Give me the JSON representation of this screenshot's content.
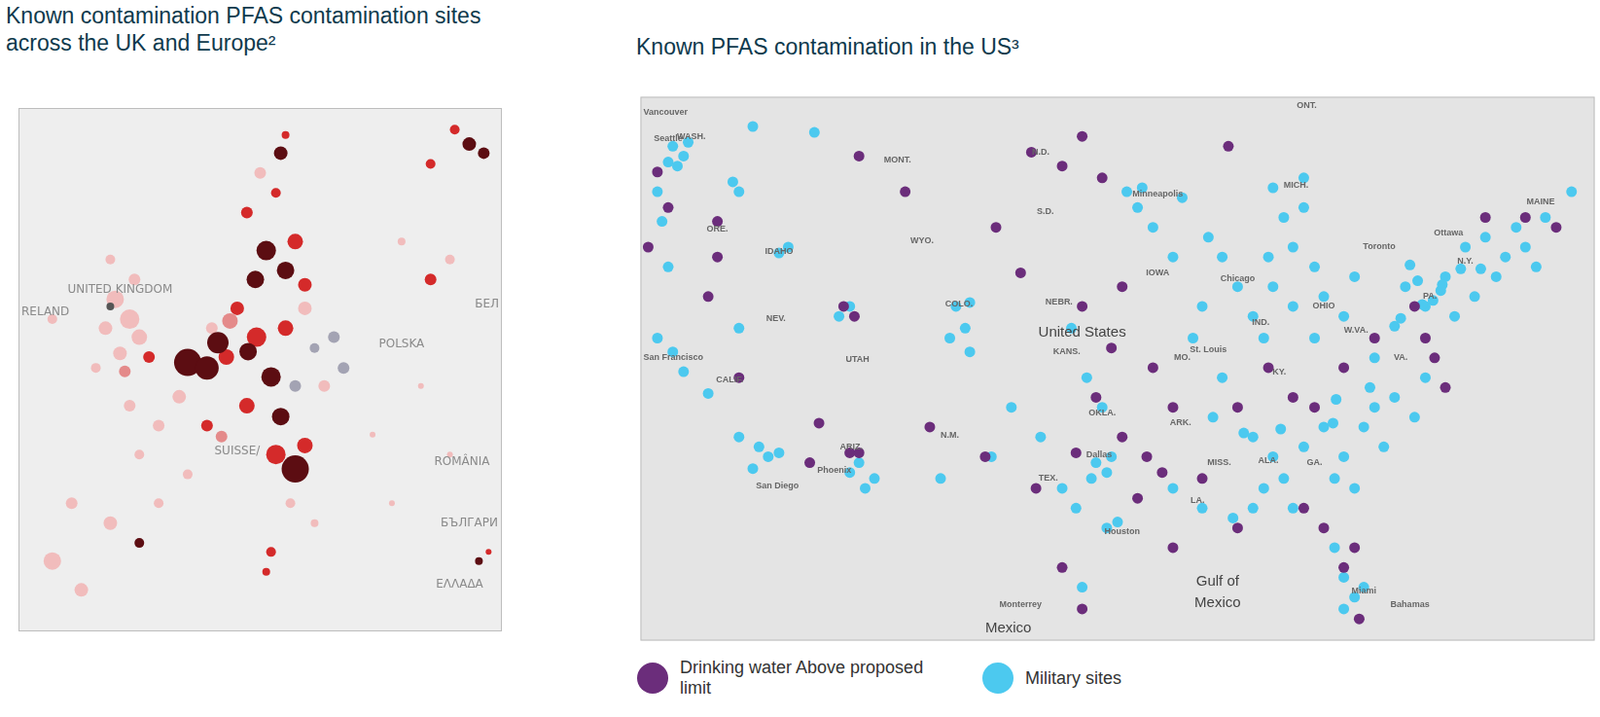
{
  "chart_data": [
    {
      "type": "bubble",
      "title": "Known contamination PFAS contamination sites across the UK and Europe²",
      "x": [
        -4.0,
        -2.8,
        -2.0,
        -3.6,
        -1.2,
        -4.8,
        -2.4,
        -4.4,
        -5.6,
        -3.2,
        -4.4,
        -9.2,
        2.0,
        3.6,
        5.2,
        8.5,
        10.1,
        10.9,
        7.6,
        11.7,
        6.9,
        9.3,
        8.0,
        9.7,
        10.1,
        25.3,
        26.5,
        24.1,
        22.1,
        22.1,
        23.7,
        19.7,
        7.7,
        10.1,
        11.7,
        12.5,
        8.9,
        10.9,
        6.9,
        9.7,
        13.3,
        6.1,
        4.0,
        -0.4,
        -2.8,
        2.0,
        -2.0,
        3.6,
        1.3,
        10.9,
        9.3,
        11.7,
        10.5,
        12.5,
        8.9,
        8.5,
        -9.2,
        -6.8,
        -4.4,
        -2.0,
        -7.6,
        -0.4,
        21.3,
        17.3,
        23.7,
        26.1,
        26.9,
        18.9,
        14.1,
        14.9,
        4.5,
        5.5,
        7.0,
        4.8
      ],
      "y": [
        53.4,
        52.3,
        51.3,
        50.4,
        50.2,
        51.8,
        54.5,
        55.6,
        49.6,
        49.4,
        53.0,
        52.3,
        49.9,
        49.6,
        50.2,
        56.1,
        55.0,
        56.6,
        54.5,
        54.2,
        58.2,
        59.3,
        60.4,
        61.5,
        62.5,
        62.0,
        61.5,
        62.8,
        60.9,
        54.5,
        55.6,
        56.6,
        51.3,
        51.8,
        52.9,
        50.7,
        49.1,
        48.6,
        47.5,
        46.9,
        48.6,
        52.9,
        51.8,
        46.4,
        47.5,
        43.7,
        44.8,
        46.4,
        48.0,
        44.0,
        44.8,
        45.3,
        42.1,
        41.0,
        39.4,
        38.3,
        38.9,
        37.3,
        41.0,
        39.9,
        42.1,
        42.1,
        48.6,
        45.9,
        44.8,
        38.9,
        39.4,
        42.1,
        51.3,
        49.6,
        51.0,
        52.2,
        50.5,
        45.8
      ],
      "sizes": [
        9,
        10,
        8,
        7,
        6,
        7,
        6,
        5,
        5,
        6,
        4,
        5,
        14,
        12,
        8,
        10,
        9,
        8,
        9,
        7,
        6,
        5,
        6,
        7,
        4,
        7,
        6,
        5,
        5,
        6,
        5,
        4,
        10,
        8,
        7,
        5,
        10,
        6,
        8,
        9,
        6,
        7,
        6,
        6,
        6,
        5,
        5,
        6,
        7,
        14,
        10,
        8,
        5,
        4,
        5,
        4,
        9,
        7,
        7,
        5,
        6,
        5,
        3,
        3,
        3,
        4,
        3,
        3,
        6,
        6,
        11,
        8,
        9,
        6
      ],
      "colors": [
        "#f1bcbc",
        "#f1bcbc",
        "#f1bcbc",
        "#f1bcbc",
        "#d42a2a",
        "#f1bcbc",
        "#f1bcbc",
        "#f1bcbc",
        "#f1bcbc",
        "#e48a8a",
        "#555555",
        "#f1bcbc",
        "#5c0d12",
        "#5c0d12",
        "#d42a2a",
        "#5c0d12",
        "#5c0d12",
        "#d42a2a",
        "#5c0d12",
        "#d42a2a",
        "#d42a2a",
        "#d42a2a",
        "#f1bcbc",
        "#5c0d12",
        "#d42a2a",
        "#5c0d12",
        "#5c0d12",
        "#d42a2a",
        "#d42a2a",
        "#d42a2a",
        "#f1bcbc",
        "#f1bcbc",
        "#d42a2a",
        "#d42a2a",
        "#f1bcbc",
        "#a3a3b3",
        "#5c0d12",
        "#a3a3b3",
        "#d42a2a",
        "#5c0d12",
        "#f1bcbc",
        "#d42a2a",
        "#f1bcbc",
        "#f1bcbc",
        "#f1bcbc",
        "#f1bcbc",
        "#f1bcbc",
        "#d42a2a",
        "#f1bcbc",
        "#5c0d12",
        "#d42a2a",
        "#d42a2a",
        "#f1bcbc",
        "#f1bcbc",
        "#d42a2a",
        "#d42a2a",
        "#f1bcbc",
        "#f1bcbc",
        "#f1bcbc",
        "#5c0d12",
        "#f1bcbc",
        "#f1bcbc",
        "#f1bcbc",
        "#f1bcbc",
        "#f1bcbc",
        "#5c0d12",
        "#d42a2a",
        "#f1bcbc",
        "#a3a3b3",
        "#a3a3b3",
        "#5c0d12",
        "#e48a8a",
        "#5c0d12",
        "#e48a8a"
      ],
      "xlim": [
        -12,
        28
      ],
      "ylim": [
        35,
        64
      ],
      "grid": false,
      "tick_labels": false,
      "annotations": [
        {
          "text": "UNITED KINGDOM",
          "x": -3.6,
          "y": 53.9
        },
        {
          "text": "RELAND",
          "x": -10.0,
          "y": 52.7
        },
        {
          "text": "POLSKA",
          "x": 19.7,
          "y": 50.9
        },
        {
          "text": "БЕЛ",
          "x": 26.9,
          "y": 53.1
        },
        {
          "text": "SUISSE/",
          "x": 6.1,
          "y": 45.0
        },
        {
          "text": "ROMÂNIA",
          "x": 24.7,
          "y": 44.4
        },
        {
          "text": "БЪЛГАРИ",
          "x": 25.3,
          "y": 41.0
        },
        {
          "text": "ΕΛΛΑΔΑ",
          "x": 24.5,
          "y": 37.6
        }
      ]
    },
    {
      "type": "scatter",
      "title": "Known PFAS contamination in the US³",
      "series": [
        {
          "name": "Drinking water Above proposed limit",
          "color": "#6b2d7b",
          "x": [
            -124.9,
            -124.2,
            -125.5,
            -121.0,
            -121.0,
            -121.6,
            -111.8,
            -108.8,
            -102.9,
            -100.6,
            -97.3,
            -98.6,
            -96.0,
            -101.3,
            -112.8,
            -112.1,
            -119.6,
            -114.4,
            -112.4,
            -111.8,
            -115.0,
            -107.2,
            -103.6,
            -100.3,
            -97.7,
            -96.4,
            -94.7,
            -93.1,
            -92.1,
            -93.7,
            -92.7,
            -91.4,
            -95.4,
            -97.3,
            -94.7,
            -87.8,
            -87.2,
            -85.2,
            -83.6,
            -82.2,
            -80.3,
            -78.3,
            -75.7,
            -75.0,
            -74.4,
            -73.7,
            -71.1,
            -68.5,
            -66.5,
            -82.9,
            -81.6,
            -80.3,
            -79.6,
            -79.3,
            -87.2,
            -98.6,
            -97.3,
            -91.4,
            -89.5
          ],
          "y": [
            46.7,
            44.9,
            42.9,
            42.4,
            44.2,
            40.4,
            47.5,
            45.7,
            43.9,
            47.7,
            48.5,
            47.0,
            46.4,
            41.6,
            39.9,
            39.4,
            36.3,
            34.0,
            32.5,
            32.5,
            32.0,
            33.8,
            32.3,
            30.7,
            32.5,
            35.3,
            33.3,
            32.3,
            31.5,
            30.2,
            36.8,
            34.8,
            37.8,
            39.9,
            40.9,
            48.0,
            34.8,
            36.8,
            35.3,
            34.8,
            36.8,
            38.3,
            39.9,
            38.3,
            37.3,
            35.8,
            44.4,
            44.4,
            43.9,
            29.7,
            28.7,
            26.7,
            27.7,
            24.1,
            28.7,
            26.7,
            24.6,
            27.7,
            31.2
          ]
        },
        {
          "name": "Military sites",
          "color": "#4cc9ef",
          "x": [
            -123.9,
            -123.2,
            -124.2,
            -122.9,
            -123.6,
            -118.7,
            -114.7,
            -120.0,
            -119.6,
            -124.9,
            -124.6,
            -124.2,
            -116.4,
            -117.0,
            -124.9,
            -123.9,
            -123.2,
            -121.6,
            -119.6,
            -118.3,
            -117.7,
            -118.7,
            -117.0,
            -119.6,
            -112.4,
            -111.4,
            -111.8,
            -110.8,
            -112.4,
            -113.1,
            -105.5,
            -104.9,
            -105.9,
            -104.6,
            -104.6,
            -106.5,
            -103.2,
            -101.9,
            -100.0,
            -98.6,
            -96.4,
            -95.7,
            -96.7,
            -95.4,
            -95.0,
            -95.7,
            -97.3,
            -97.7,
            -97.0,
            -96.0,
            -98.0,
            -94.4,
            -93.4,
            -93.7,
            -92.7,
            -90.8,
            -89.1,
            -91.4,
            -89.5,
            -90.1,
            -88.2,
            -88.8,
            -87.2,
            -86.2,
            -88.2,
            -84.9,
            -84.2,
            -83.6,
            -85.2,
            -82.9,
            -82.2,
            -82.9,
            -84.9,
            -83.6,
            -81.6,
            -80.3,
            -82.2,
            -85.5,
            -79.6,
            -78.3,
            -76.3,
            -75.0,
            -73.7,
            -72.4,
            -71.1,
            -69.8,
            -68.5,
            -67.8,
            -71.8,
            -73.1,
            -70.4,
            -69.1,
            -67.2,
            -65.5,
            -86.2,
            -84.9,
            -84.2,
            -82.9,
            -81.6,
            -80.3,
            -79.0,
            -78.3,
            -77.0,
            -75.7,
            -75.0,
            -77.7,
            -85.5,
            -87.5,
            -83.6,
            -86.2,
            -89.5,
            -91.4,
            -80.9,
            -79.6,
            -80.9,
            -80.3,
            -79.6,
            -79.0,
            -80.3,
            -74.0,
            -74.5,
            -73.9,
            -75.2,
            -76.6,
            -77.0,
            -72.7,
            -71.4,
            -75.5,
            -76.0,
            -84.4,
            -81.0,
            -86.8,
            -80.8,
            -78.6
          ],
          "y": [
            48.0,
            47.5,
            47.2,
            48.2,
            47.0,
            49.0,
            48.7,
            46.2,
            45.7,
            45.7,
            44.2,
            41.9,
            42.9,
            42.6,
            38.3,
            37.6,
            36.6,
            35.5,
            33.3,
            32.8,
            32.3,
            31.7,
            32.5,
            38.8,
            31.5,
            30.7,
            32.0,
            31.2,
            39.9,
            39.4,
            39.9,
            38.8,
            38.3,
            37.6,
            40.1,
            31.2,
            32.3,
            34.8,
            33.3,
            30.7,
            32.0,
            31.5,
            31.2,
            32.3,
            29.0,
            28.7,
            25.7,
            29.7,
            36.3,
            34.8,
            38.8,
            45.7,
            45.9,
            44.9,
            43.9,
            45.4,
            43.4,
            42.4,
            39.9,
            38.3,
            36.3,
            34.3,
            40.9,
            39.4,
            42.4,
            45.9,
            44.4,
            42.9,
            42.4,
            44.9,
            41.9,
            46.4,
            40.9,
            39.9,
            40.4,
            39.4,
            38.3,
            38.3,
            41.4,
            37.3,
            40.9,
            39.9,
            41.4,
            42.9,
            43.4,
            42.4,
            42.9,
            41.9,
            40.4,
            39.4,
            41.4,
            43.9,
            44.4,
            45.7,
            33.3,
            32.3,
            31.2,
            32.8,
            33.8,
            32.3,
            33.8,
            34.8,
            35.3,
            34.3,
            36.3,
            32.8,
            30.7,
            29.2,
            29.7,
            29.7,
            29.7,
            30.7,
            31.2,
            30.7,
            27.7,
            26.2,
            25.2,
            25.7,
            24.6,
            40.7,
            40.2,
            41.0,
            40.0,
            39.3,
            38.9,
            41.8,
            41.8,
            41.2,
            42.0,
            33.7,
            34.0,
            33.5,
            35.2,
            35.8
          ]
        }
      ],
      "xlim": [
        -126,
        -64
      ],
      "ylim": [
        23,
        50.5
      ],
      "grid": false,
      "tick_labels": false,
      "legend": "bottom",
      "annotations": [
        {
          "text": "ONT.",
          "x": -82.7,
          "y": 50.2
        },
        {
          "text": "Vancouver",
          "x": -124.9,
          "y": 49.7
        },
        {
          "text": "Seattle",
          "x": -124.2,
          "y": 48.4
        },
        {
          "text": "WASH.",
          "x": -122.7,
          "y": 48.5
        },
        {
          "text": "MONT.",
          "x": -109.3,
          "y": 47.3
        },
        {
          "text": "N.D.",
          "x": -100.0,
          "y": 47.7
        },
        {
          "text": "S.D.",
          "x": -99.7,
          "y": 44.7
        },
        {
          "text": "Minneapolis",
          "x": -92.4,
          "y": 45.6
        },
        {
          "text": "MICH.",
          "x": -83.4,
          "y": 46.0
        },
        {
          "text": "Ottawa",
          "x": -73.5,
          "y": 43.6
        },
        {
          "text": "MAINE",
          "x": -67.5,
          "y": 45.2
        },
        {
          "text": "Toronto",
          "x": -78.0,
          "y": 42.9
        },
        {
          "text": "IDAHO",
          "x": -117.0,
          "y": 42.7
        },
        {
          "text": "ORE.",
          "x": -121.0,
          "y": 43.8
        },
        {
          "text": "WYO.",
          "x": -107.7,
          "y": 43.2
        },
        {
          "text": "IOWA",
          "x": -92.4,
          "y": 41.6
        },
        {
          "text": "Chicago",
          "x": -87.2,
          "y": 41.3
        },
        {
          "text": "N.Y.",
          "x": -72.4,
          "y": 42.2
        },
        {
          "text": "PA.",
          "x": -74.7,
          "y": 40.4
        },
        {
          "text": "NEV.",
          "x": -117.2,
          "y": 39.3
        },
        {
          "text": "NEBR.",
          "x": -98.8,
          "y": 40.1
        },
        {
          "text": "COLO.",
          "x": -105.3,
          "y": 40.0
        },
        {
          "text": "OHIO",
          "x": -81.6,
          "y": 39.9
        },
        {
          "text": "IND.",
          "x": -85.7,
          "y": 39.1
        },
        {
          "text": "W.VA.",
          "x": -79.5,
          "y": 38.7
        },
        {
          "text": "San Francisco",
          "x": -124.2,
          "y": 37.3
        },
        {
          "text": "UTAH",
          "x": -111.9,
          "y": 37.2
        },
        {
          "text": "KANS.",
          "x": -98.3,
          "y": 37.6
        },
        {
          "text": "St. Louis",
          "x": -89.1,
          "y": 37.7
        },
        {
          "text": "MO.",
          "x": -90.8,
          "y": 37.3
        },
        {
          "text": "VA.",
          "x": -76.6,
          "y": 37.3
        },
        {
          "text": "KY.",
          "x": -84.5,
          "y": 36.6
        },
        {
          "text": "CALIF.",
          "x": -120.2,
          "y": 36.2
        },
        {
          "text": "OKLA.",
          "x": -96.0,
          "y": 34.5
        },
        {
          "text": "ARK.",
          "x": -90.9,
          "y": 34.0
        },
        {
          "text": "N.M.",
          "x": -105.9,
          "y": 33.4
        },
        {
          "text": "ARIZ.",
          "x": -112.3,
          "y": 32.8
        },
        {
          "text": "Dallas",
          "x": -96.2,
          "y": 32.4
        },
        {
          "text": "MISS.",
          "x": -88.4,
          "y": 32.0
        },
        {
          "text": "ALA.",
          "x": -85.2,
          "y": 32.1
        },
        {
          "text": "GA.",
          "x": -82.2,
          "y": 32.0
        },
        {
          "text": "Phoenix",
          "x": -113.4,
          "y": 31.6
        },
        {
          "text": "TEX.",
          "x": -99.5,
          "y": 31.2
        },
        {
          "text": "San Diego",
          "x": -117.1,
          "y": 30.8
        },
        {
          "text": "LA.",
          "x": -89.8,
          "y": 30.1
        },
        {
          "text": "Houston",
          "x": -94.7,
          "y": 28.5
        },
        {
          "text": "Miami",
          "x": -79.0,
          "y": 25.5
        },
        {
          "text": "Monterrey",
          "x": -101.3,
          "y": 24.8
        },
        {
          "text": "Bahamas",
          "x": -76.0,
          "y": 24.8
        }
      ],
      "large_annotations": [
        {
          "text": "United States",
          "x": -97.3,
          "y": 38.6
        },
        {
          "text": "Gulf of",
          "x": -88.5,
          "y": 26.0
        },
        {
          "text": "Mexico",
          "x": -88.5,
          "y": 24.9
        },
        {
          "text": "Mexico",
          "x": -102.1,
          "y": 23.6
        }
      ]
    }
  ]
}
